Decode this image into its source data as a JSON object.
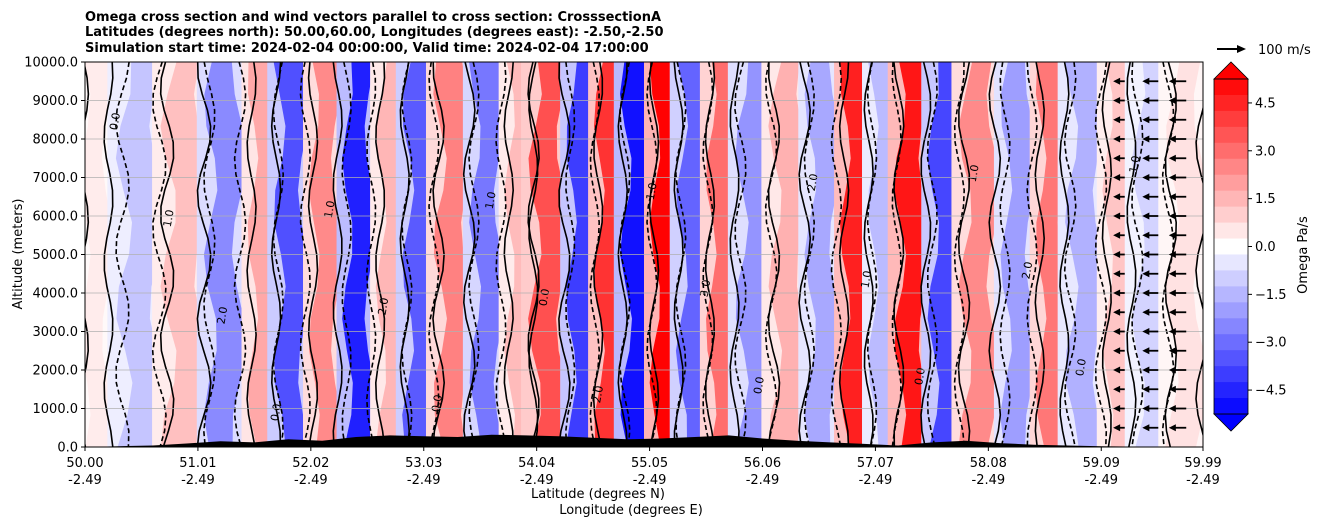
{
  "chart_data": {
    "type": "contour",
    "title_lines": [
      "Omega cross section and wind vectors parallel to cross section: CrosssectionA",
      "Latitudes (degrees north): 50.00,60.00, Longitudes (degrees east): -2.50,-2.50",
      "Simulation start time: 2024-02-04 00:00:00, Valid time: 2024-02-04 17:00:00"
    ],
    "ylabel": "Altitude (meters)",
    "xlabel_lines": [
      "Latitude (degrees N)",
      "Longitude (degrees E)"
    ],
    "ylim": [
      0,
      10000
    ],
    "y_ticks": [
      "0.0",
      "1000.0",
      "2000.0",
      "3000.0",
      "4000.0",
      "5000.0",
      "6000.0",
      "7000.0",
      "8000.0",
      "9000.0",
      "10000.0"
    ],
    "y_tick_values": [
      0,
      1000,
      2000,
      3000,
      4000,
      5000,
      6000,
      7000,
      8000,
      9000,
      10000
    ],
    "x_ticks": [
      {
        "lat": "50.00",
        "lon": "-2.49",
        "frac": 0.0
      },
      {
        "lat": "51.01",
        "lon": "-2.49",
        "frac": 0.101
      },
      {
        "lat": "52.02",
        "lon": "-2.49",
        "frac": 0.202
      },
      {
        "lat": "53.03",
        "lon": "-2.49",
        "frac": 0.303
      },
      {
        "lat": "54.04",
        "lon": "-2.49",
        "frac": 0.404
      },
      {
        "lat": "55.05",
        "lon": "-2.49",
        "frac": 0.505
      },
      {
        "lat": "56.06",
        "lon": "-2.49",
        "frac": 0.606
      },
      {
        "lat": "57.07",
        "lon": "-2.49",
        "frac": 0.707
      },
      {
        "lat": "58.08",
        "lon": "-2.49",
        "frac": 0.808
      },
      {
        "lat": "59.09",
        "lon": "-2.49",
        "frac": 0.909
      },
      {
        "lat": "59.99",
        "lon": "-2.49",
        "frac": 1.0
      }
    ],
    "grid": "horizontal",
    "colormap": "bwr",
    "colorbar": {
      "label": "Omega Pa/s",
      "range": [
        -5.25,
        5.25
      ],
      "ticks": [
        "4.5",
        "3.0",
        "1.5",
        "0.0",
        "−1.5",
        "−3.0",
        "−4.5"
      ],
      "tick_values": [
        4.5,
        3.0,
        1.5,
        0.0,
        -1.5,
        -3.0,
        -4.5
      ],
      "levels": 21,
      "extend": "both"
    },
    "quiver_key": {
      "label": "100 m/s",
      "value": 100
    },
    "omega_bands": [
      {
        "x": 0.01,
        "w": 0.02,
        "v": 0.4
      },
      {
        "x": 0.05,
        "w": 0.03,
        "v": -1.2
      },
      {
        "x": 0.09,
        "w": 0.03,
        "v": 1.3
      },
      {
        "x": 0.125,
        "w": 0.025,
        "v": -2.4
      },
      {
        "x": 0.16,
        "w": 0.02,
        "v": 1.8
      },
      {
        "x": 0.185,
        "w": 0.022,
        "v": -3.6
      },
      {
        "x": 0.215,
        "w": 0.02,
        "v": 2.4
      },
      {
        "x": 0.245,
        "w": 0.02,
        "v": -4.6
      },
      {
        "x": 0.275,
        "w": 0.02,
        "v": 1.5
      },
      {
        "x": 0.3,
        "w": 0.022,
        "v": -3.4
      },
      {
        "x": 0.33,
        "w": 0.025,
        "v": 2.6
      },
      {
        "x": 0.36,
        "w": 0.022,
        "v": -2.8
      },
      {
        "x": 0.39,
        "w": 0.02,
        "v": 1.4
      },
      {
        "x": 0.415,
        "w": 0.025,
        "v": 3.6
      },
      {
        "x": 0.445,
        "w": 0.02,
        "v": -4.0
      },
      {
        "x": 0.47,
        "w": 0.02,
        "v": 4.2
      },
      {
        "x": 0.495,
        "w": 0.022,
        "v": -4.9
      },
      {
        "x": 0.52,
        "w": 0.02,
        "v": 5.2
      },
      {
        "x": 0.545,
        "w": 0.022,
        "v": -3.2
      },
      {
        "x": 0.57,
        "w": 0.02,
        "v": 3.0
      },
      {
        "x": 0.6,
        "w": 0.025,
        "v": -2.2
      },
      {
        "x": 0.63,
        "w": 0.025,
        "v": 1.6
      },
      {
        "x": 0.66,
        "w": 0.022,
        "v": -1.8
      },
      {
        "x": 0.69,
        "w": 0.02,
        "v": 4.6
      },
      {
        "x": 0.715,
        "w": 0.02,
        "v": -1.4
      },
      {
        "x": 0.74,
        "w": 0.022,
        "v": 4.8
      },
      {
        "x": 0.77,
        "w": 0.022,
        "v": -3.8
      },
      {
        "x": 0.8,
        "w": 0.025,
        "v": 2.4
      },
      {
        "x": 0.835,
        "w": 0.022,
        "v": -2.0
      },
      {
        "x": 0.865,
        "w": 0.02,
        "v": 2.8
      },
      {
        "x": 0.895,
        "w": 0.025,
        "v": -1.6
      },
      {
        "x": 0.925,
        "w": 0.02,
        "v": 1.2
      },
      {
        "x": 0.955,
        "w": 0.025,
        "v": -0.9
      },
      {
        "x": 0.985,
        "w": 0.025,
        "v": 0.6
      }
    ],
    "terrain_heights_m": [
      0,
      20,
      40,
      90,
      150,
      120,
      200,
      160,
      260,
      300,
      280,
      260,
      320,
      300,
      280,
      240,
      200,
      220,
      260,
      300,
      220,
      160,
      120,
      80,
      40,
      120,
      160,
      100,
      60,
      40,
      20,
      10,
      0,
      0
    ],
    "contour_labels": [
      "0.0",
      "1.0",
      "2.0",
      "0.0",
      "1.0",
      "2.0",
      "0.0",
      "1.0",
      "0.0",
      "2.0",
      "1.0",
      "3.0",
      "0.0",
      "2.0",
      "1.0",
      "0.0",
      "1.0",
      "2.0",
      "0.0",
      "1.0"
    ],
    "wind_vectors_columns_frac": [
      0.93,
      0.96,
      0.985
    ],
    "wind_vector_u_ms": [
      -40,
      -55,
      -60
    ]
  }
}
